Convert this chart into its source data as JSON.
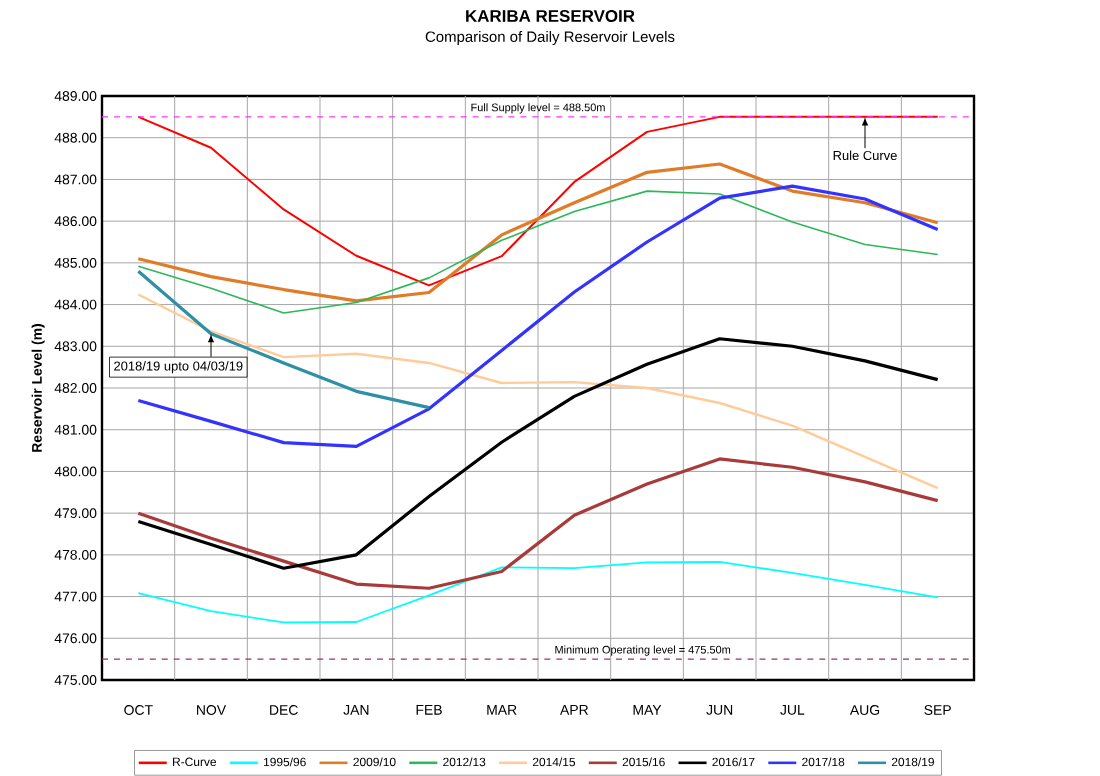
{
  "chart_data": {
    "type": "line",
    "title": "KARIBA RESERVOIR",
    "subtitle": "Comparison of Daily Reservoir Levels",
    "ylabel": "Reservoir Level (m)",
    "categories": [
      "OCT",
      "NOV",
      "DEC",
      "JAN",
      "FEB",
      "MAR",
      "APR",
      "MAY",
      "JUN",
      "JUL",
      "AUG",
      "SEP"
    ],
    "ylim": [
      475,
      489
    ],
    "yticks": [
      {
        "value": 475,
        "label": "475.00"
      },
      {
        "value": 476,
        "label": "476.00"
      },
      {
        "value": 477,
        "label": "477.00"
      },
      {
        "value": 478,
        "label": "478.00"
      },
      {
        "value": 479,
        "label": "479.00"
      },
      {
        "value": 480,
        "label": "480.00"
      },
      {
        "value": 481,
        "label": "481.00"
      },
      {
        "value": 482,
        "label": "482.00"
      },
      {
        "value": 483,
        "label": "483.00"
      },
      {
        "value": 484,
        "label": "484.00"
      },
      {
        "value": 485,
        "label": "485.00"
      },
      {
        "value": 486,
        "label": "486.00"
      },
      {
        "value": 487,
        "label": "487.00"
      },
      {
        "value": 488,
        "label": "488.00"
      },
      {
        "value": 489,
        "label": "489.00"
      }
    ],
    "grid": true,
    "legend": "bottom",
    "marker": "none",
    "line_style": "solid",
    "series": [
      {
        "name": "R-Curve",
        "color": "#ff0000",
        "values": [
          488.5,
          487.76,
          486.28,
          485.17,
          484.46,
          485.16,
          486.94,
          488.14,
          488.5,
          488.5,
          488.5,
          488.5
        ]
      },
      {
        "name": "1995/96",
        "color": "#00ffff",
        "values": [
          477.08,
          476.65,
          476.38,
          476.39,
          477.03,
          477.7,
          477.68,
          477.82,
          477.83,
          477.57,
          477.28,
          476.98
        ]
      },
      {
        "name": "2009/10",
        "color": "#e07b28",
        "values": [
          485.1,
          484.67,
          484.36,
          484.09,
          484.29,
          485.67,
          486.44,
          487.17,
          487.37,
          486.72,
          486.44,
          485.96
        ]
      },
      {
        "name": "2012/13",
        "color": "#2cb858",
        "values": [
          484.92,
          484.39,
          483.8,
          484.05,
          484.64,
          485.54,
          486.23,
          486.72,
          486.65,
          485.98,
          485.44,
          485.2
        ]
      },
      {
        "name": "2014/15",
        "color": "#ffcc99",
        "values": [
          484.24,
          483.36,
          482.74,
          482.82,
          482.6,
          482.12,
          482.14,
          482.0,
          481.64,
          481.1,
          480.35,
          479.6
        ]
      },
      {
        "name": "2015/16",
        "color": "#a83a3a",
        "values": [
          479.0,
          478.4,
          477.85,
          477.3,
          477.2,
          477.6,
          478.95,
          479.7,
          480.3,
          480.1,
          479.75,
          479.3
        ]
      },
      {
        "name": "2016/17",
        "color": "#000000",
        "values": [
          478.8,
          478.25,
          477.68,
          478.0,
          479.4,
          480.7,
          481.8,
          482.57,
          483.18,
          483.0,
          482.65,
          482.2
        ]
      },
      {
        "name": "2017/18",
        "color": "#3333ff",
        "values": [
          481.7,
          481.2,
          480.69,
          480.6,
          481.5,
          482.9,
          484.3,
          485.5,
          486.55,
          486.84,
          486.53,
          485.8
        ]
      },
      {
        "name": "2018/19",
        "color": "#2e8fa5",
        "values": [
          484.8,
          483.3,
          482.6,
          481.92,
          481.53,
          null,
          null,
          null,
          null,
          null,
          null,
          null
        ]
      }
    ],
    "ref_lines": [
      {
        "axis": "y",
        "value": 488.5,
        "label": "Full Supply level  = 488.50m",
        "color": "#ff33ff",
        "line_style": "dashed"
      },
      {
        "axis": "y",
        "value": 475.5,
        "label": "Minimum Operating level = 475.50m",
        "color": "#993366",
        "line_style": "dashed"
      }
    ],
    "annotations": [
      {
        "text": "Rule Curve",
        "x": "AUG",
        "y": 488.5
      },
      {
        "text": "2018/19 upto 04/03/19",
        "x": "NOV",
        "y": 483.3
      }
    ]
  }
}
